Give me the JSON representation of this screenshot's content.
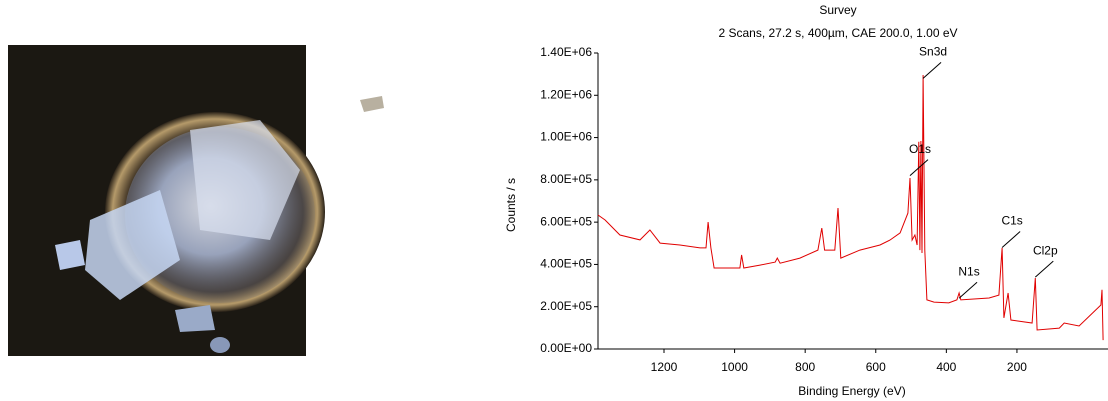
{
  "chart_data": {
    "type": "line",
    "title": "Survey",
    "subtitle": "2 Scans,  27.2 s,  400µm,  CAE 200.0,  1.00 eV",
    "x_label": "Binding Energy (eV)",
    "y_label": "Counts / s",
    "color": "#e00000",
    "xlim": [
      1387,
      -58
    ],
    "xticks": [
      1200,
      1000,
      800,
      600,
      400,
      200
    ],
    "ylim": [
      0,
      1400000
    ],
    "yticks": [
      {
        "value": 0,
        "label": "0.00E+00"
      },
      {
        "value": 200000,
        "label": "2.00E+05"
      },
      {
        "value": 400000,
        "label": "4.00E+05"
      },
      {
        "value": 600000,
        "label": "6.00E+05"
      },
      {
        "value": 800000,
        "label": "8.00E+05"
      },
      {
        "value": 1000000,
        "label": "1.00E+06"
      },
      {
        "value": 1200000,
        "label": "1.20E+06"
      },
      {
        "value": 1400000,
        "label": "1.40E+06"
      }
    ],
    "x": [
      1387,
      1367,
      1325,
      1268,
      1240,
      1211,
      1155,
      1098,
      1081,
      1075,
      1067,
      1058,
      985,
      980,
      974,
      928,
      885,
      879,
      871,
      815,
      764,
      753,
      745,
      716,
      707,
      699,
      645,
      588,
      560,
      531,
      509,
      503,
      497,
      489,
      483,
      478,
      475,
      472,
      469,
      466,
      461,
      455,
      435,
      393,
      370,
      364,
      359,
      279,
      251,
      242,
      237,
      225,
      217,
      157,
      148,
      143,
      80,
      66,
      24,
      -38,
      -41,
      -44
    ],
    "values": [
      634000,
      610000,
      539000,
      516000,
      563000,
      501000,
      492000,
      478000,
      478000,
      600000,
      478000,
      383000,
      383000,
      445000,
      383000,
      397000,
      411000,
      430000,
      406000,
      430000,
      468000,
      572000,
      468000,
      468000,
      667000,
      430000,
      468000,
      492000,
      515000,
      549000,
      643000,
      809000,
      515000,
      539000,
      492000,
      980000,
      468000,
      984000,
      454000,
      1296000,
      468000,
      232000,
      222000,
      218000,
      232000,
      265000,
      232000,
      241000,
      255000,
      478000,
      147000,
      265000,
      137000,
      123000,
      336000,
      90000,
      99000,
      123000,
      109000,
      208000,
      280000,
      42000
    ],
    "annotations": [
      {
        "text": "Sn3d",
        "x": 466,
        "y": 1280000
      },
      {
        "text": "O1s",
        "x": 503,
        "y": 820000
      },
      {
        "text": "N1s",
        "x": 364,
        "y": 240000
      },
      {
        "text": "C1s",
        "x": 242,
        "y": 480000
      },
      {
        "text": "Cl2p",
        "x": 148,
        "y": 340000
      }
    ]
  }
}
